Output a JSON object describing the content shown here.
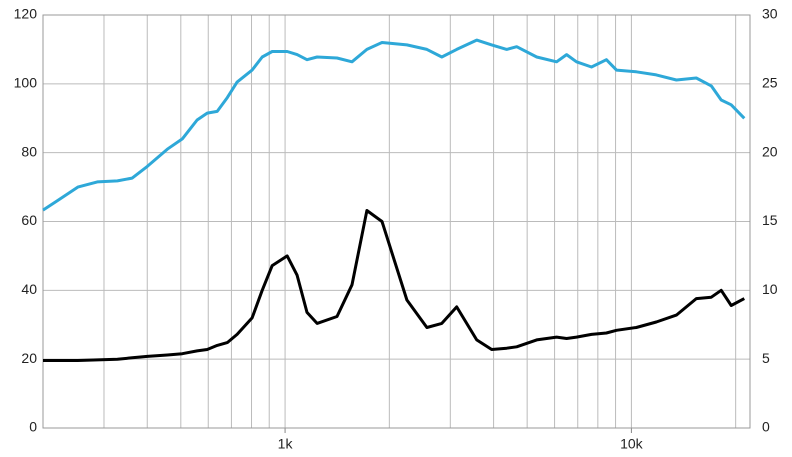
{
  "chart_data": {
    "type": "line",
    "xscale": "log",
    "grid": true,
    "xlim": [
      200,
      22000
    ],
    "xticks": [
      {
        "value": 1000,
        "label": "1k"
      },
      {
        "value": 10000,
        "label": "10k"
      }
    ],
    "xgrid": [
      200,
      300,
      400,
      500,
      600,
      700,
      800,
      900,
      1000,
      2000,
      3000,
      4000,
      5000,
      6000,
      7000,
      8000,
      9000,
      10000,
      20000
    ],
    "ylim": [
      0,
      120
    ],
    "yticks": [
      0,
      20,
      40,
      60,
      80,
      100,
      120
    ],
    "y2lim": [
      0,
      30
    ],
    "y2ticks": [
      0,
      5,
      10,
      15,
      20,
      25,
      30
    ],
    "x": [
      200,
      220,
      252,
      287,
      328,
      362,
      400,
      457,
      505,
      557,
      596,
      637,
      681,
      727,
      803,
      859,
      918,
      1014,
      1083,
      1157,
      1237,
      1412,
      1560,
      1723,
      1905,
      2248,
      2567,
      2834,
      3130,
      3574,
      3950,
      4363,
      4665,
      5326,
      6080,
      6500,
      6941,
      7670,
      8471,
      9058,
      10330,
      11800,
      13490,
      15390,
      17010,
      18170,
      19420,
      21180
    ],
    "series": [
      {
        "color": "#2ea8d8",
        "values": [
          63.3,
          66,
          70,
          71.5,
          71.8,
          72.6,
          76,
          81,
          84,
          89.5,
          91.5,
          92,
          96,
          100.5,
          104,
          107.8,
          109.4,
          109.4,
          108.5,
          107,
          107.8,
          107.5,
          106.4,
          110,
          112,
          111.3,
          110,
          107.8,
          110,
          112.7,
          111.3,
          110,
          110.8,
          107.8,
          106.4,
          108.5,
          106.4,
          104.9,
          107,
          104,
          103.5,
          102.6,
          101.1,
          101.7,
          99.4,
          95.3,
          93.9,
          90
        ]
      },
      {
        "color": "#000000",
        "axis": "y2",
        "values": [
          4.9,
          4.9,
          4.9,
          4.95,
          5,
          5.1,
          5.2,
          5.3,
          5.4,
          5.6,
          5.7,
          6.0,
          6.2,
          6.8,
          8.0,
          10.0,
          11.8,
          12.5,
          11.1,
          8.4,
          7.6,
          8.1,
          10.4,
          15.8,
          15.0,
          9.3,
          7.3,
          7.6,
          8.8,
          6.4,
          5.7,
          5.8,
          5.9,
          6.4,
          6.6,
          6.5,
          6.6,
          6.8,
          6.9,
          7.1,
          7.3,
          7.7,
          8.2,
          9.4,
          9.5,
          10.0,
          8.9,
          9.4
        ]
      }
    ]
  }
}
